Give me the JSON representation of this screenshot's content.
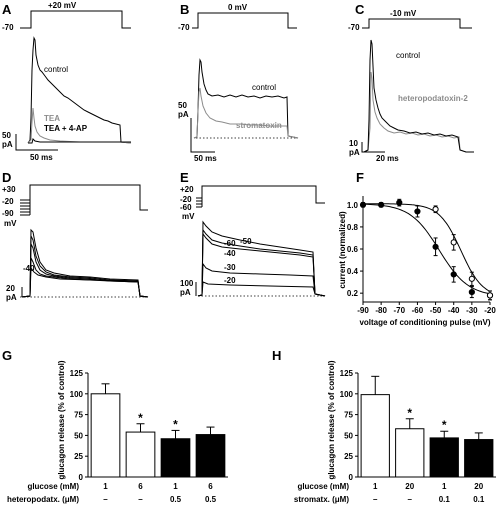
{
  "panels": {
    "A": {
      "letter": "A",
      "pulse_label": "+20 mV",
      "hold_label": "-70",
      "labels": [
        "control",
        "TEA",
        "TEA + 4-AP"
      ],
      "scale_y": "50\npA",
      "scale_x": "50 ms"
    },
    "B": {
      "letter": "B",
      "pulse_label": "0 mV",
      "hold_label": "-70",
      "labels": [
        "control",
        "stromatoxin"
      ],
      "scale_y": "50\npA",
      "scale_x": "50 ms"
    },
    "C": {
      "letter": "C",
      "pulse_label": "-10 mV",
      "hold_label": "-70",
      "labels": [
        "control",
        "heteropodatoxin-2"
      ],
      "scale_y": "10\npA",
      "scale_x": "20 ms"
    },
    "D": {
      "letter": "D",
      "hold_labels": [
        "+30",
        "-20",
        "-90",
        "mV"
      ],
      "trace_label": "-40",
      "scale_y": "20\npA"
    },
    "E": {
      "letter": "E",
      "hold_labels": [
        "+20",
        "-20",
        "-60",
        "mV"
      ],
      "trace_labels": [
        "-60",
        "-50",
        "-40",
        "-30",
        "-20"
      ],
      "scale_y": "100\npA"
    }
  },
  "colors": {
    "black": "#000000",
    "gray": "#8c8c8c",
    "bar_open": "#ffffff",
    "bar_filled": "#000000"
  },
  "chart_data": [
    {
      "panel": "F",
      "type": "scatter",
      "xlabel": "voltage of conditioning pulse (mV)",
      "ylabel": "current (normalized)",
      "xlim": [
        -90,
        -20
      ],
      "ylim": [
        0.12,
        1.08
      ],
      "xticks": [
        -90,
        -80,
        -70,
        -60,
        -50,
        -40,
        -30,
        -20
      ],
      "yticks": [
        0.2,
        0.4,
        0.6,
        0.8,
        1.0
      ],
      "series": [
        {
          "marker": "filled",
          "x": [
            -90,
            -80,
            -70,
            -60,
            -50,
            -40,
            -30,
            -20
          ],
          "y": [
            1.0,
            1.0,
            1.02,
            0.94,
            0.62,
            0.37,
            0.21,
            0.18
          ],
          "err": [
            0.02,
            0.02,
            0.03,
            0.05,
            0.08,
            0.07,
            0.05,
            0.04
          ]
        },
        {
          "marker": "open",
          "x": [
            -50,
            -40,
            -30,
            -20
          ],
          "y": [
            0.96,
            0.66,
            0.33,
            0.18
          ],
          "err": [
            0.03,
            0.07,
            0.06,
            0.04
          ]
        }
      ]
    },
    {
      "panel": "G",
      "type": "bar",
      "ylabel": "glucagon release (% of control)",
      "ylim": [
        0,
        125
      ],
      "yticks": [
        0,
        25,
        50,
        75,
        100,
        125
      ],
      "row_labels": [
        "glucose (mM)",
        "heteropodatx. (μM)"
      ],
      "rows": [
        [
          "1",
          "6",
          "1",
          "6"
        ],
        [
          "–",
          "–",
          "0.5",
          "0.5"
        ]
      ],
      "values": [
        100,
        54,
        46,
        51
      ],
      "errors": [
        12,
        10,
        10,
        9
      ],
      "fills": [
        "open",
        "open",
        "filled",
        "filled"
      ],
      "significance": [
        "",
        "*",
        "*",
        ""
      ]
    },
    {
      "panel": "H",
      "type": "bar",
      "ylabel": "glucagon release (% of control)",
      "ylim": [
        0,
        125
      ],
      "yticks": [
        0,
        25,
        50,
        75,
        100,
        125
      ],
      "row_labels": [
        "glucose (mM)",
        "stromatx. (μM)"
      ],
      "rows": [
        [
          "1",
          "20",
          "1",
          "20"
        ],
        [
          "–",
          "–",
          "0.1",
          "0.1"
        ]
      ],
      "values": [
        99,
        58,
        47,
        45
      ],
      "errors": [
        22,
        12,
        8,
        8
      ],
      "fills": [
        "open",
        "open",
        "filled",
        "filled"
      ],
      "significance": [
        "",
        "*",
        "*",
        ""
      ]
    }
  ]
}
